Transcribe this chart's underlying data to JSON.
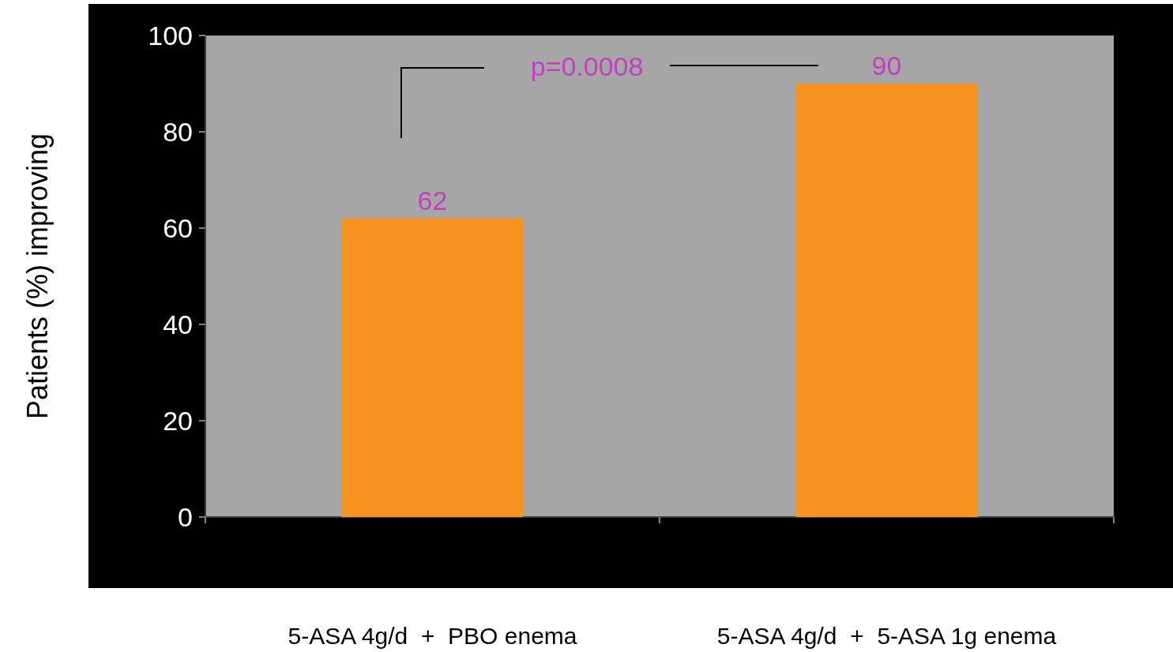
{
  "chart_data": {
    "type": "bar",
    "ylabel": "Patients (%) improving",
    "categories": [
      "5-ASA 4g/d  +  PBO enema",
      "5-ASA 4g/d  +  5-ASA 1g enema"
    ],
    "values": [
      62,
      90
    ],
    "color": "#f7931e",
    "ylim": [
      0,
      100
    ],
    "yticks": [
      0,
      20,
      40,
      60,
      80,
      100
    ],
    "grid": false,
    "data_labels": true,
    "annotations": [
      "p=0.0008"
    ]
  }
}
